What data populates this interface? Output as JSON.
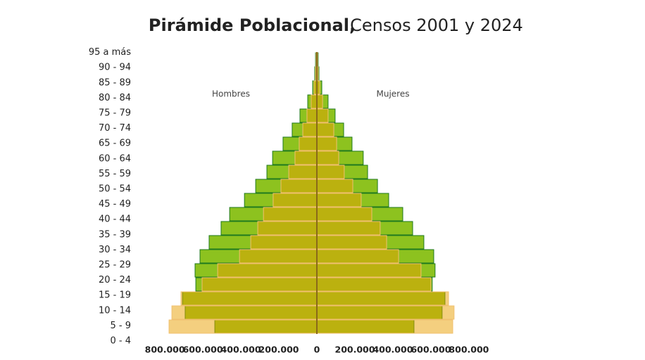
{
  "chart_data": {
    "type": "pyramid",
    "title": "Pirámide Poblacional,",
    "subtitle": "Censos 2001 y 2024",
    "left_label": "Hombres",
    "right_label": "Mujeres",
    "categories": [
      "0 - 4",
      "5 - 9",
      "10 - 14",
      "15 - 19",
      "20 - 24",
      "25 - 29",
      "30 - 34",
      "35 - 39",
      "40 - 44",
      "45 - 49",
      "50 - 54",
      "55 - 59",
      "60 - 64",
      "65 - 69",
      "70 - 74",
      "75 - 79",
      "80 - 84",
      "85 - 89",
      "90 - 94",
      "95 a más"
    ],
    "series": [
      {
        "color": "#8dc21f",
        "border": "#1f7a1f",
        "opacity": 1,
        "hombres": [
          -537000,
          -693000,
          -707000,
          -637000,
          -641000,
          -615000,
          -567000,
          -504000,
          -459000,
          -381000,
          -322000,
          -263000,
          -233000,
          -178000,
          -130000,
          -89000,
          -48000,
          -22000,
          -11000,
          -7000
        ],
        "mujeres": [
          511000,
          659000,
          674000,
          607000,
          622000,
          615000,
          563000,
          504000,
          452000,
          378000,
          319000,
          267000,
          244000,
          185000,
          141000,
          96000,
          59000,
          26000,
          11000,
          7000
        ]
      },
      {
        "color": "#e9a000",
        "border": "#f0c070",
        "opacity": 0.5,
        "hombres": [
          -778000,
          -763000,
          -715000,
          -604000,
          -522000,
          -407000,
          -348000,
          -311000,
          -281000,
          -230000,
          -189000,
          -148000,
          -115000,
          -93000,
          -74000,
          -52000,
          -30000,
          -15000,
          -7000,
          -4000
        ],
        "mujeres": [
          715000,
          722000,
          693000,
          600000,
          548000,
          430000,
          367000,
          333000,
          289000,
          233000,
          189000,
          144000,
          115000,
          104000,
          89000,
          59000,
          30000,
          15000,
          7000,
          4000
        ]
      }
    ],
    "xlim": [
      -830000,
      830000
    ],
    "xticks": [
      {
        "value": -800000,
        "label": "800.000"
      },
      {
        "value": -600000,
        "label": "600.000"
      },
      {
        "value": -400000,
        "label": "400.000"
      },
      {
        "value": -200000,
        "label": "200.000"
      },
      0,
      {
        "value": 200000,
        "label": "200.000"
      },
      {
        "value": 400000,
        "label": "400.000"
      },
      {
        "value": 600000,
        "label": "600.000"
      },
      {
        "value": 800000,
        "label": "800.000"
      }
    ]
  }
}
